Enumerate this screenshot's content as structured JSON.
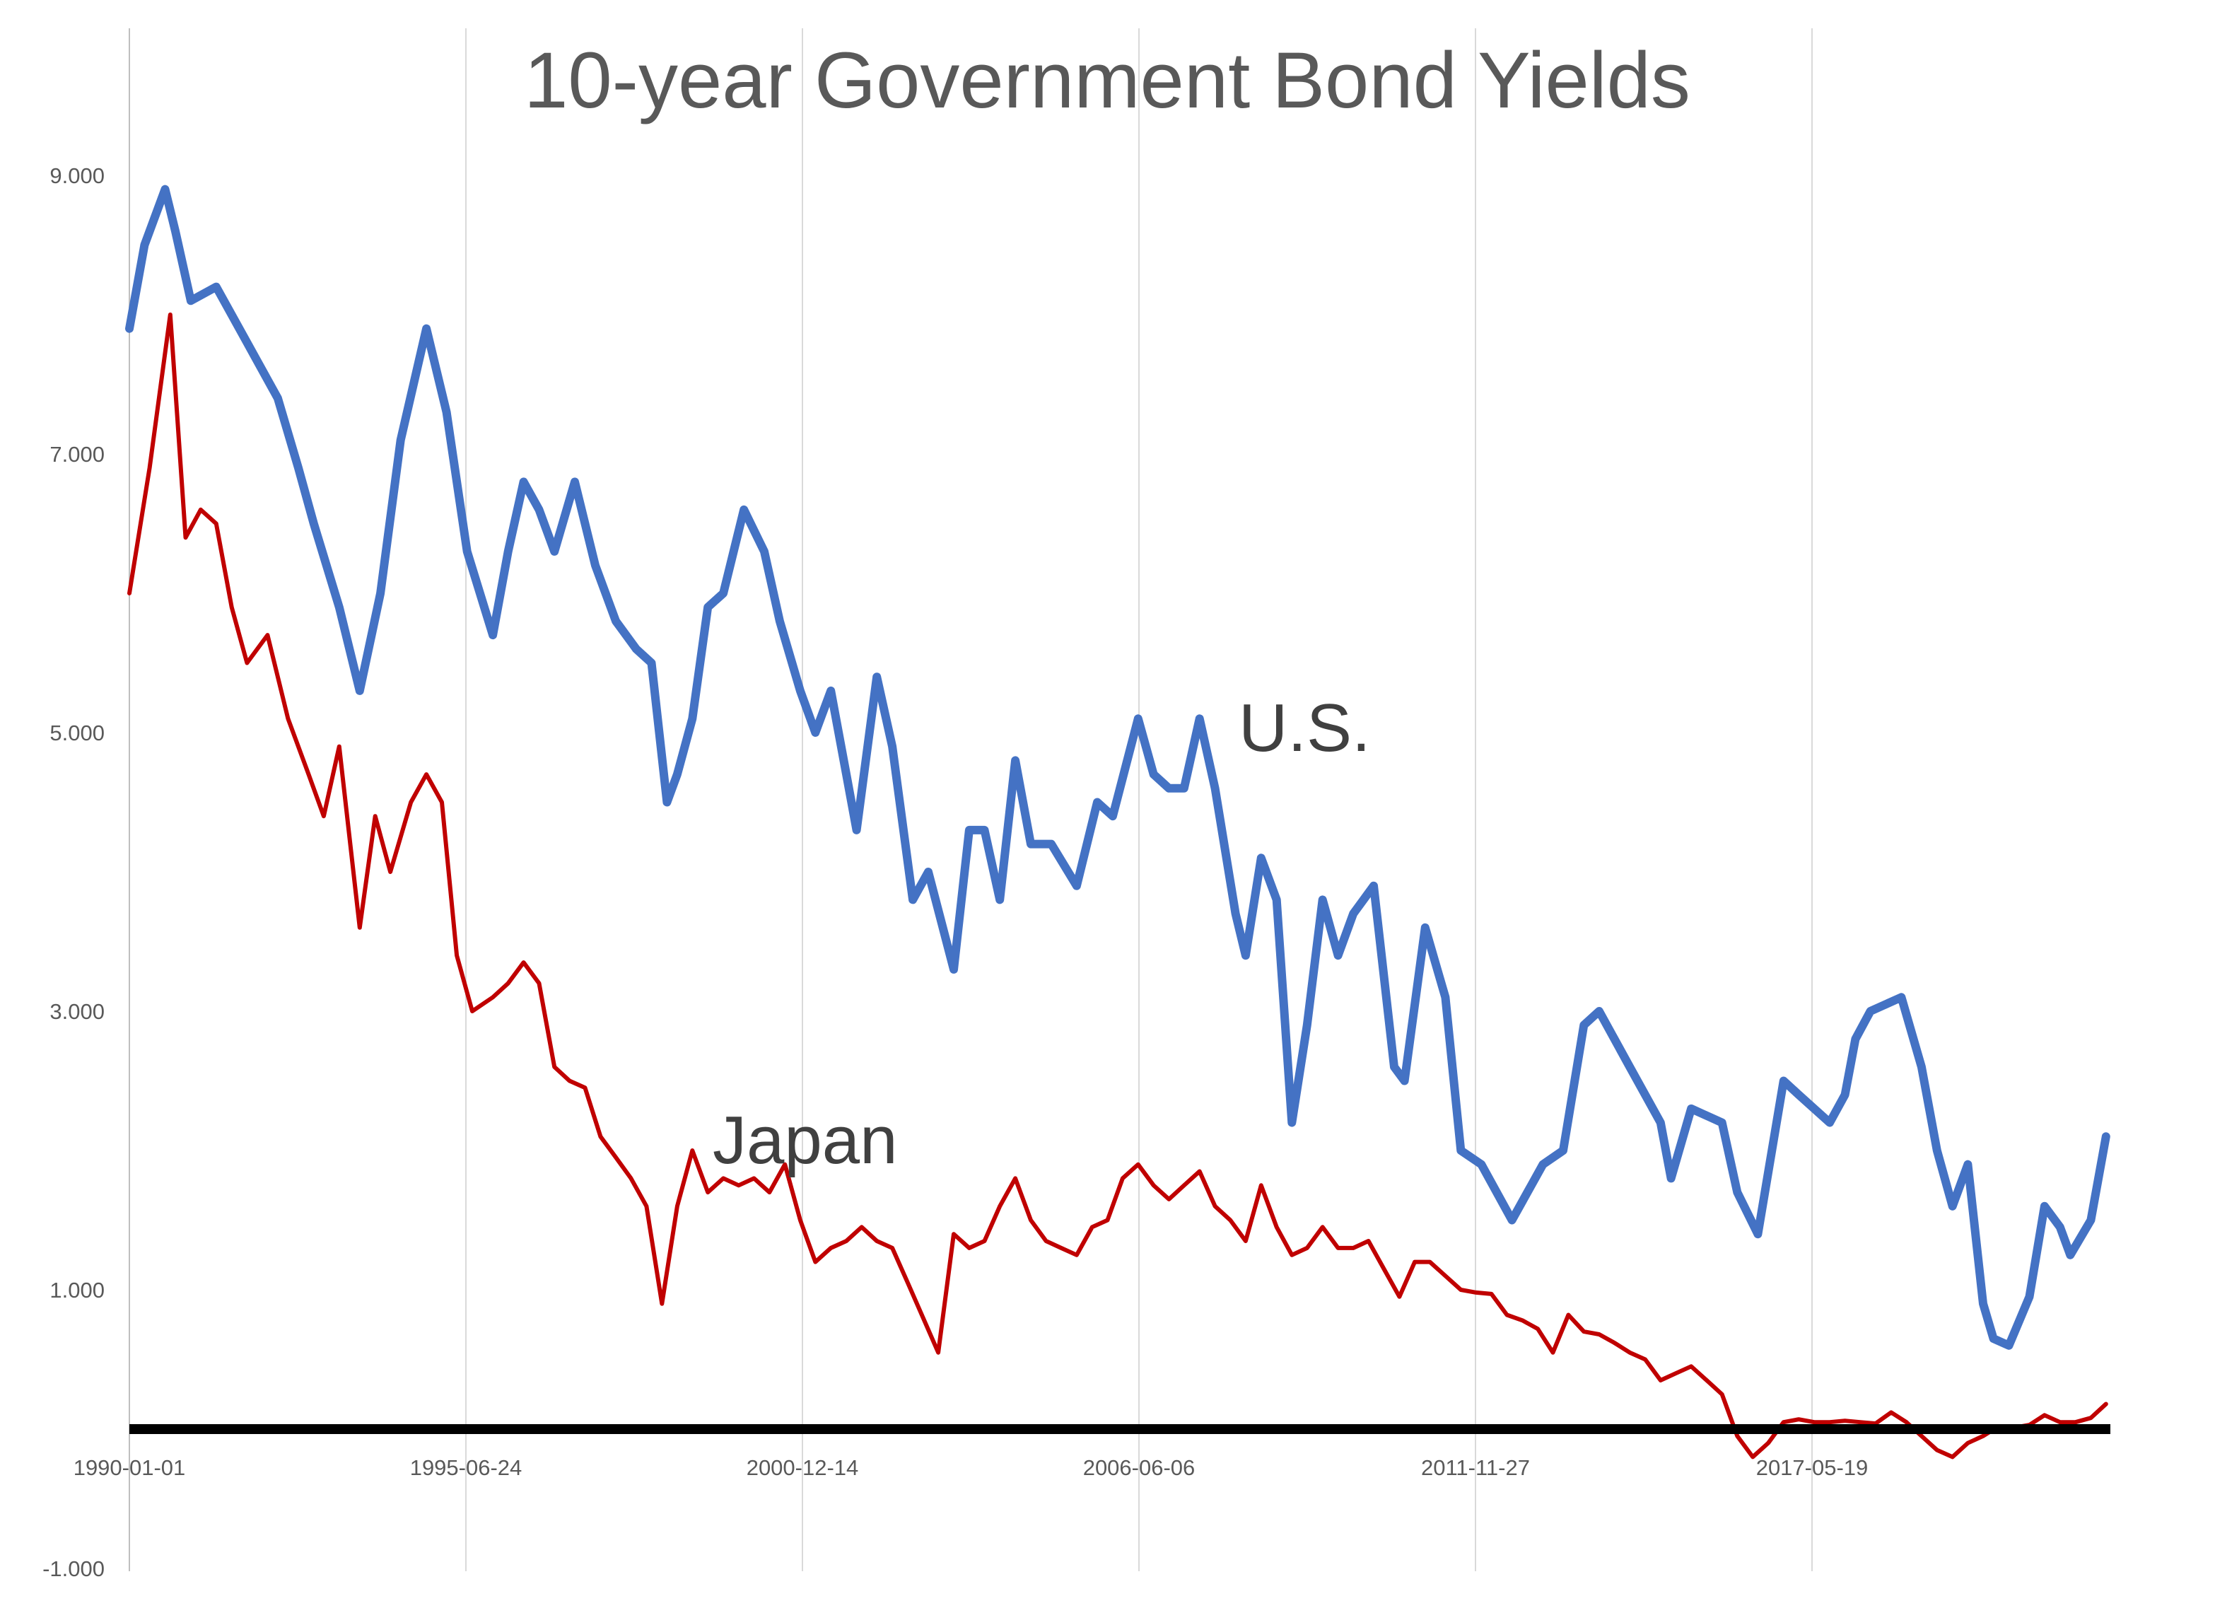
{
  "chart_data": {
    "type": "line",
    "title": "10-year Government Bond Yields",
    "xlabel": "",
    "ylabel": "",
    "ylim": [
      -1.0,
      10.0
    ],
    "yticks": [
      -1.0,
      1.0,
      3.0,
      5.0,
      7.0,
      9.0
    ],
    "ytick_labels": [
      "-1.000",
      "1.000",
      "3.000",
      "5.000",
      "7.000",
      "9.000"
    ],
    "xlim": [
      "1990-01-01",
      "2022-03-01"
    ],
    "xticks": [
      "1990-01-01",
      "1995-06-24",
      "2000-12-14",
      "2006-06-06",
      "2011-11-27",
      "2017-05-19"
    ],
    "grid": "vertical",
    "legend": "none",
    "reference_line": {
      "y": 0,
      "color": "#000000"
    },
    "annotations": [
      {
        "text": "U.S.",
        "series": "U.S."
      },
      {
        "text": "Japan",
        "series": "Japan"
      }
    ],
    "series": [
      {
        "name": "U.S.",
        "color": "#4472C4",
        "x": [
          "1990-01-01",
          "1990-04-01",
          "1990-08-01",
          "1990-10-01",
          "1991-01-01",
          "1991-06-01",
          "1991-12-01",
          "1992-06-01",
          "1992-10-01",
          "1993-01-01",
          "1993-06-01",
          "1993-10-01",
          "1994-02-01",
          "1994-06-01",
          "1994-11-01",
          "1995-03-01",
          "1995-07-01",
          "1995-12-01",
          "1996-03-01",
          "1996-06-01",
          "1996-09-01",
          "1996-12-01",
          "1997-04-01",
          "1997-08-01",
          "1997-12-01",
          "1998-04-01",
          "1998-07-01",
          "1998-10-01",
          "1998-12-01",
          "1999-03-01",
          "1999-06-01",
          "1999-09-01",
          "2000-01-01",
          "2000-05-01",
          "2000-08-01",
          "2000-12-01",
          "2001-03-01",
          "2001-06-01",
          "2001-09-01",
          "2001-11-01",
          "2002-03-01",
          "2002-06-01",
          "2002-10-01",
          "2003-01-01",
          "2003-06-01",
          "2003-09-01",
          "2003-12-01",
          "2004-03-01",
          "2004-06-01",
          "2004-09-01",
          "2005-01-01",
          "2005-06-01",
          "2005-10-01",
          "2006-01-01",
          "2006-06-01",
          "2006-09-01",
          "2006-12-01",
          "2007-03-01",
          "2007-06-01",
          "2007-09-01",
          "2008-01-01",
          "2008-03-01",
          "2008-06-01",
          "2008-09-01",
          "2008-12-01",
          "2009-03-01",
          "2009-06-01",
          "2009-09-01",
          "2009-12-01",
          "2010-04-01",
          "2010-08-01",
          "2010-10-01",
          "2011-02-01",
          "2011-06-01",
          "2011-09-01",
          "2012-01-01",
          "2012-07-01",
          "2012-10-01",
          "2013-01-01",
          "2013-05-01",
          "2013-09-01",
          "2013-12-01",
          "2014-06-01",
          "2014-12-01",
          "2015-02-01",
          "2015-06-01",
          "2015-12-01",
          "2016-03-01",
          "2016-07-01",
          "2016-12-01",
          "2017-03-01",
          "2017-09-01",
          "2017-12-01",
          "2018-02-01",
          "2018-05-01",
          "2018-11-01",
          "2019-03-01",
          "2019-06-01",
          "2019-09-01",
          "2019-12-01",
          "2020-03-01",
          "2020-05-01",
          "2020-08-01",
          "2020-12-01",
          "2021-03-01",
          "2021-06-01",
          "2021-08-01",
          "2021-12-01",
          "2022-03-01"
        ],
        "values": [
          7.9,
          8.5,
          8.9,
          8.6,
          8.1,
          8.2,
          7.8,
          7.4,
          6.9,
          6.5,
          5.9,
          5.3,
          6.0,
          7.1,
          7.9,
          7.3,
          6.3,
          5.7,
          6.3,
          6.8,
          6.6,
          6.3,
          6.8,
          6.2,
          5.8,
          5.6,
          5.5,
          4.5,
          4.7,
          5.1,
          5.9,
          6.0,
          6.6,
          6.3,
          5.8,
          5.3,
          5.0,
          5.3,
          4.7,
          4.3,
          5.4,
          4.9,
          3.8,
          4.0,
          3.3,
          4.3,
          4.3,
          3.8,
          4.8,
          4.2,
          4.2,
          3.9,
          4.5,
          4.4,
          5.1,
          4.7,
          4.6,
          4.6,
          5.1,
          4.6,
          3.7,
          3.4,
          4.1,
          3.8,
          2.2,
          2.9,
          3.8,
          3.4,
          3.7,
          3.9,
          2.6,
          2.5,
          3.6,
          3.1,
          2.0,
          1.9,
          1.5,
          1.7,
          1.9,
          2.0,
          2.9,
          3.0,
          2.6,
          2.2,
          1.8,
          2.3,
          2.2,
          1.7,
          1.4,
          2.5,
          2.4,
          2.2,
          2.4,
          2.8,
          3.0,
          3.1,
          2.6,
          2.0,
          1.6,
          1.9,
          0.9,
          0.65,
          0.6,
          0.95,
          1.6,
          1.45,
          1.25,
          1.5,
          2.1
        ]
      },
      {
        "name": "Japan",
        "color": "#C00000",
        "x": [
          "1990-01-01",
          "1990-05-01",
          "1990-09-01",
          "1990-12-01",
          "1991-03-01",
          "1991-06-01",
          "1991-09-01",
          "1991-12-01",
          "1992-04-01",
          "1992-08-01",
          "1992-12-01",
          "1993-03-01",
          "1993-06-01",
          "1993-10-01",
          "1994-01-01",
          "1994-04-01",
          "1994-08-01",
          "1994-11-01",
          "1995-02-01",
          "1995-05-01",
          "1995-08-01",
          "1995-12-01",
          "1996-03-01",
          "1996-06-01",
          "1996-09-01",
          "1996-12-01",
          "1997-03-01",
          "1997-06-01",
          "1997-09-01",
          "1997-12-01",
          "1998-03-01",
          "1998-06-01",
          "1998-09-01",
          "1998-12-01",
          "1999-03-01",
          "1999-06-01",
          "1999-09-01",
          "1999-12-01",
          "2000-03-01",
          "2000-06-01",
          "2000-09-01",
          "2000-12-01",
          "2001-03-01",
          "2001-06-01",
          "2001-09-01",
          "2001-12-01",
          "2002-03-01",
          "2002-06-01",
          "2002-09-01",
          "2002-12-01",
          "2003-03-01",
          "2003-06-01",
          "2003-09-01",
          "2003-12-01",
          "2004-03-01",
          "2004-06-01",
          "2004-09-01",
          "2004-12-01",
          "2005-03-01",
          "2005-06-01",
          "2005-09-01",
          "2005-12-01",
          "2006-03-01",
          "2006-06-01",
          "2006-09-01",
          "2006-12-01",
          "2007-03-01",
          "2007-06-01",
          "2007-09-01",
          "2007-12-01",
          "2008-03-01",
          "2008-06-01",
          "2008-09-01",
          "2008-12-01",
          "2009-03-01",
          "2009-06-01",
          "2009-09-01",
          "2009-12-01",
          "2010-03-01",
          "2010-06-01",
          "2010-09-01",
          "2010-12-01",
          "2011-03-01",
          "2011-06-01",
          "2011-09-01",
          "2011-12-01",
          "2012-03-01",
          "2012-06-01",
          "2012-09-01",
          "2012-12-01",
          "2013-03-01",
          "2013-06-01",
          "2013-09-01",
          "2013-12-01",
          "2014-03-01",
          "2014-06-01",
          "2014-09-01",
          "2014-12-01",
          "2015-03-01",
          "2015-06-01",
          "2015-09-01",
          "2015-12-01",
          "2016-03-01",
          "2016-06-01",
          "2016-09-01",
          "2016-12-01",
          "2017-03-01",
          "2017-06-01",
          "2017-09-01",
          "2017-12-01",
          "2018-03-01",
          "2018-06-01",
          "2018-09-01",
          "2018-12-01",
          "2019-03-01",
          "2019-06-01",
          "2019-09-01",
          "2019-12-01",
          "2020-03-01",
          "2020-06-01",
          "2020-09-01",
          "2020-12-01",
          "2021-03-01",
          "2021-06-01",
          "2021-09-01",
          "2021-12-01",
          "2022-03-01"
        ],
        "values": [
          6.0,
          6.9,
          8.0,
          6.4,
          6.6,
          6.5,
          5.9,
          5.5,
          5.7,
          5.1,
          4.7,
          4.4,
          4.9,
          3.6,
          4.4,
          4.0,
          4.5,
          4.7,
          4.5,
          3.4,
          3.0,
          3.1,
          3.2,
          3.35,
          3.2,
          2.6,
          2.5,
          2.45,
          2.1,
          1.95,
          1.8,
          1.6,
          0.9,
          1.6,
          2.0,
          1.7,
          1.8,
          1.75,
          1.8,
          1.7,
          1.9,
          1.5,
          1.2,
          1.3,
          1.35,
          1.45,
          1.35,
          1.3,
          1.05,
          0.8,
          0.55,
          1.4,
          1.3,
          1.35,
          1.6,
          1.8,
          1.5,
          1.35,
          1.3,
          1.25,
          1.45,
          1.5,
          1.8,
          1.9,
          1.75,
          1.65,
          1.75,
          1.85,
          1.6,
          1.5,
          1.35,
          1.75,
          1.45,
          1.25,
          1.3,
          1.45,
          1.3,
          1.3,
          1.35,
          1.15,
          0.95,
          1.2,
          1.2,
          1.1,
          1.0,
          0.98,
          0.97,
          0.82,
          0.78,
          0.72,
          0.55,
          0.82,
          0.7,
          0.68,
          0.62,
          0.55,
          0.5,
          0.35,
          0.4,
          0.45,
          0.35,
          0.25,
          -0.05,
          -0.2,
          -0.1,
          0.05,
          0.07,
          0.05,
          0.05,
          0.06,
          0.05,
          0.04,
          0.12,
          0.05,
          -0.05,
          -0.15,
          -0.2,
          -0.1,
          -0.05,
          0.02,
          0.01,
          0.03,
          0.1,
          0.05,
          0.05,
          0.08,
          0.18
        ]
      }
    ]
  }
}
